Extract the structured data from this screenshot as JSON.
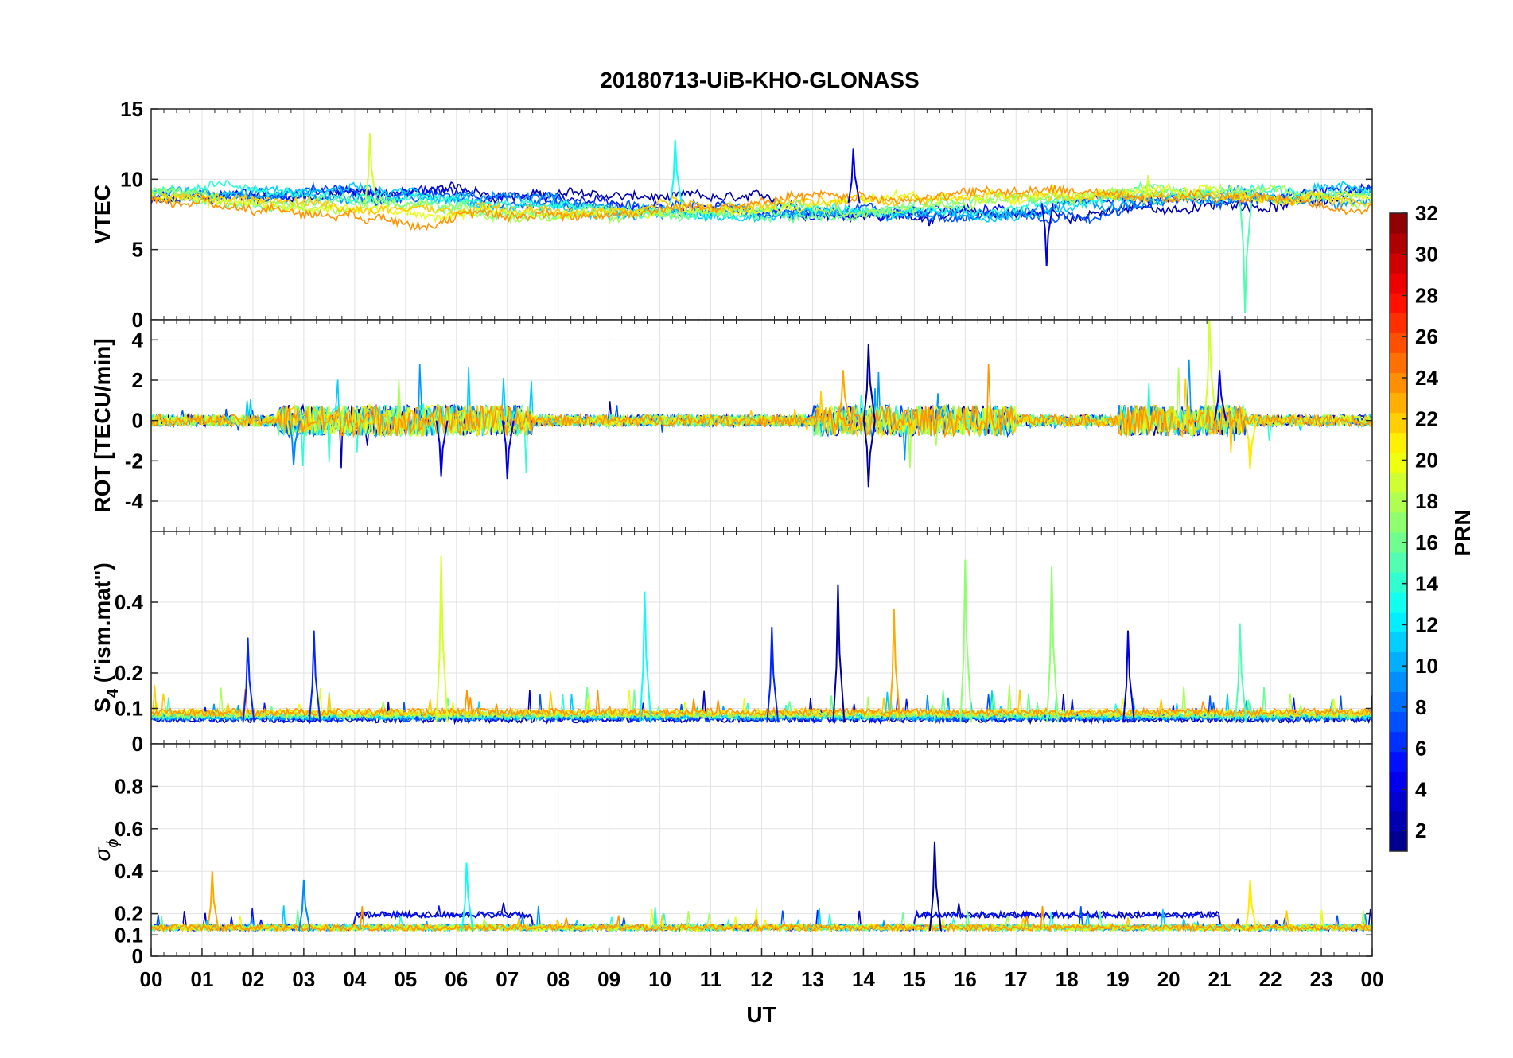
{
  "chart_data": {
    "type": "line",
    "title": "20180713-UiB-KHO-GLONASS",
    "xlabel": "UT",
    "x_ticks": [
      "00",
      "01",
      "02",
      "03",
      "04",
      "05",
      "06",
      "07",
      "08",
      "09",
      "10",
      "11",
      "12",
      "13",
      "14",
      "15",
      "16",
      "17",
      "18",
      "19",
      "20",
      "21",
      "22",
      "23",
      "00"
    ],
    "xlim_hours": [
      0,
      24
    ],
    "grid": true,
    "panels": [
      {
        "key": "vtec",
        "ylabel": "VTEC",
        "ylim": [
          0,
          15
        ],
        "yticks": [
          "0",
          "5",
          "10",
          "15"
        ],
        "tick_values": [
          0,
          5,
          10,
          15
        ],
        "baseline": 8.3,
        "noise": 0.55
      },
      {
        "key": "rot",
        "ylabel": "ROT [TECU/min]",
        "ylim": [
          -5.5,
          5
        ],
        "yticks": [
          "-4",
          "-2",
          "0",
          "2",
          "4"
        ],
        "tick_values": [
          -4,
          -2,
          0,
          2,
          4
        ],
        "baseline": 0,
        "noise": 0.35
      },
      {
        "key": "s4",
        "ylabel_main": "S",
        "ylabel_sub": "4",
        "ylabel_rest": " (\"ism.mat\")",
        "ylim": [
          0,
          0.6
        ],
        "yticks": [
          "0",
          "0.1",
          "0.2",
          "0.4"
        ],
        "tick_values": [
          0,
          0.1,
          0.2,
          0.4
        ],
        "baseline": 0.06,
        "noise": 0.02
      },
      {
        "key": "sigma",
        "ylabel_main": "σ",
        "ylabel_sub": "ϕ",
        "ylim": [
          0,
          1
        ],
        "yticks": [
          "0",
          "0.1",
          "0.2",
          "0.4",
          "0.6",
          "0.8"
        ],
        "tick_values": [
          0,
          0.1,
          0.2,
          0.4,
          0.6,
          0.8
        ],
        "baseline": 0.12,
        "noise": 0.03
      }
    ],
    "colorbar": {
      "label": "PRN",
      "range": [
        1,
        32
      ],
      "ticks": [
        "2",
        "4",
        "6",
        "8",
        "10",
        "12",
        "14",
        "16",
        "18",
        "20",
        "22",
        "24",
        "26",
        "28",
        "30",
        "32"
      ],
      "tick_values": [
        2,
        4,
        6,
        8,
        10,
        12,
        14,
        16,
        18,
        20,
        22,
        24,
        26,
        28,
        30,
        32
      ],
      "colormap": "jet"
    },
    "series": [
      {
        "prn": 2,
        "color": "#0000b5"
      },
      {
        "prn": 4,
        "color": "#0012ff"
      },
      {
        "prn": 6,
        "color": "#0052ff"
      },
      {
        "prn": 9,
        "color": "#0096ff"
      },
      {
        "prn": 11,
        "color": "#00cdff"
      },
      {
        "prn": 13,
        "color": "#2affd5"
      },
      {
        "prn": 15,
        "color": "#6aff95"
      },
      {
        "prn": 17,
        "color": "#a9ff56"
      },
      {
        "prn": 19,
        "color": "#e6ff19"
      },
      {
        "prn": 21,
        "color": "#ffcc00"
      },
      {
        "prn": 23,
        "color": "#ff9400"
      }
    ],
    "peaks": {
      "vtec": [
        [
          4.3,
          13.3,
          19
        ],
        [
          10.3,
          12.8,
          13
        ],
        [
          13.8,
          12.2,
          4
        ],
        [
          21.5,
          0.5,
          15
        ],
        [
          17.6,
          3.8,
          4
        ],
        [
          19.6,
          10.3,
          19
        ]
      ],
      "rot": [
        [
          2.8,
          -2.2,
          9
        ],
        [
          5.7,
          -2.8,
          4
        ],
        [
          7.0,
          -2.9,
          4
        ],
        [
          13.6,
          2.5,
          23
        ],
        [
          14.1,
          3.8,
          2
        ],
        [
          14.1,
          -3.3,
          2
        ],
        [
          20.8,
          5.1,
          19
        ],
        [
          21.0,
          2.5,
          4
        ],
        [
          21.6,
          -2.4,
          21
        ]
      ],
      "s4": [
        [
          5.7,
          0.53,
          19
        ],
        [
          9.7,
          0.43,
          13
        ],
        [
          13.5,
          0.45,
          2
        ],
        [
          14.6,
          0.38,
          23
        ],
        [
          16.0,
          0.52,
          17
        ],
        [
          17.7,
          0.5,
          17
        ],
        [
          3.2,
          0.32,
          6
        ],
        [
          12.2,
          0.33,
          6
        ],
        [
          19.2,
          0.32,
          4
        ],
        [
          1.9,
          0.3,
          6
        ],
        [
          21.4,
          0.34,
          15
        ]
      ],
      "sigma": [
        [
          1.2,
          0.4,
          23
        ],
        [
          15.4,
          0.54,
          2
        ],
        [
          6.2,
          0.44,
          13
        ],
        [
          3.0,
          0.36,
          9
        ],
        [
          21.6,
          0.36,
          21
        ]
      ]
    }
  }
}
